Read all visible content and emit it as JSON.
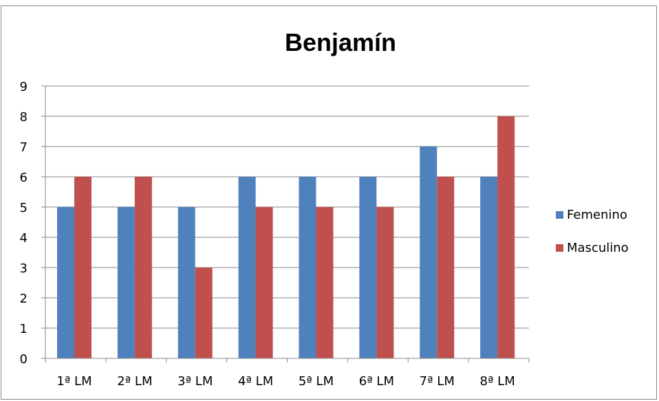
{
  "chart_data": {
    "type": "bar",
    "title": "Benjamín",
    "xlabel": "",
    "ylabel": "",
    "categories": [
      "1ª LM",
      "2ª LM",
      "3ª LM",
      "4ª LM",
      "5ª LM",
      "6ª LM",
      "7ª LM",
      "8ª LM"
    ],
    "series": [
      {
        "name": "Femenino",
        "values": [
          5,
          5,
          5,
          6,
          6,
          6,
          7,
          6
        ],
        "color": "#4F81BD"
      },
      {
        "name": "Masculino",
        "values": [
          6,
          6,
          3,
          5,
          5,
          5,
          6,
          8
        ],
        "color": "#C0504D"
      }
    ],
    "ylim": [
      0,
      9
    ],
    "yticks": [
      "0",
      "1",
      "2",
      "3",
      "4",
      "5",
      "6",
      "7",
      "8",
      "9"
    ],
    "grid": true,
    "legend_position": "right",
    "gridline_color": "#868686",
    "axis_color": "#868686"
  }
}
